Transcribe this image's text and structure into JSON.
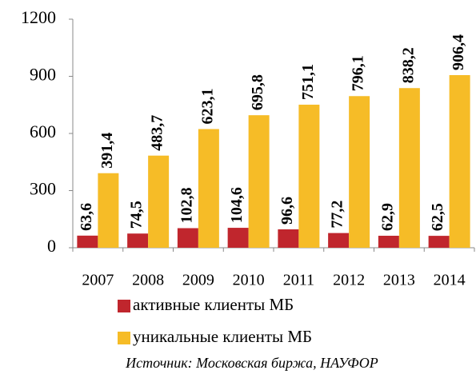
{
  "chart_data": {
    "type": "bar",
    "categories": [
      "2007",
      "2008",
      "2009",
      "2010",
      "2011",
      "2012",
      "2013",
      "2014"
    ],
    "series": [
      {
        "name": "активные клиенты МБ",
        "color": "#c0262d",
        "values": [
          63.6,
          74.5,
          102.8,
          104.6,
          96.6,
          77.2,
          62.9,
          62.5
        ],
        "value_labels": [
          "63,6",
          "74,5",
          "102,8",
          "104,6",
          "96,6",
          "77,2",
          "62,9",
          "62,5"
        ]
      },
      {
        "name": "уникальные клиенты МБ",
        "color": "#f6bc27",
        "values": [
          391.4,
          483.7,
          623.1,
          695.8,
          751.1,
          796.1,
          838.2,
          906.4
        ],
        "value_labels": [
          "391,4",
          "483,7",
          "623,1",
          "695,8",
          "751,1",
          "796,1",
          "838,2",
          "906,4"
        ]
      }
    ],
    "ylim": [
      0,
      1200
    ],
    "yticks": [
      0,
      300,
      600,
      900,
      1200
    ],
    "source": "Источник: Московская биржа, НАУФОР"
  }
}
